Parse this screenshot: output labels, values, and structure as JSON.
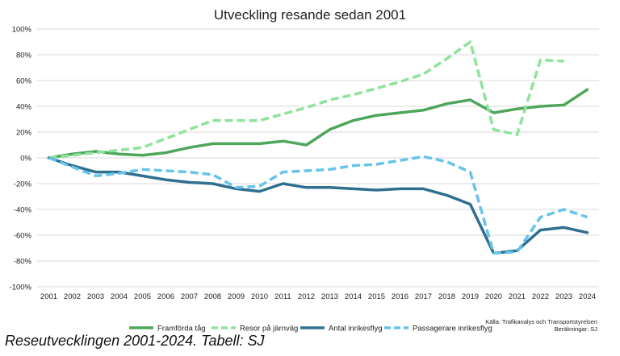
{
  "chart_data": {
    "type": "line",
    "title": "Utveckling resande sedan 2001",
    "xlabel": "",
    "ylabel": "",
    "ylim": [
      -100,
      100
    ],
    "y_ticks": [
      "100%",
      "80%",
      "60%",
      "40%",
      "20%",
      "0%",
      "-20%",
      "-40%",
      "-60%",
      "-80%",
      "-100%"
    ],
    "y_tick_values": [
      100,
      80,
      60,
      40,
      20,
      0,
      -20,
      -40,
      -60,
      -80,
      -100
    ],
    "x": [
      "2001",
      "2002",
      "2003",
      "2004",
      "2005",
      "2006",
      "2007",
      "2008",
      "2009",
      "2010",
      "2011",
      "2012",
      "2013",
      "2014",
      "2015",
      "2016",
      "2017",
      "2018",
      "2019",
      "2020",
      "2021",
      "2022",
      "2023",
      "2024"
    ],
    "grid": true,
    "legend_position": "bottom",
    "series": [
      {
        "name": "Framförda tåg",
        "color": "#4ea65b",
        "dashed": false,
        "values": [
          0,
          3,
          5,
          3,
          2,
          4,
          8,
          11,
          11,
          11,
          13,
          10,
          22,
          29,
          33,
          35,
          37,
          42,
          45,
          35,
          38,
          40,
          41,
          53
        ]
      },
      {
        "name": "Resor på järnväg",
        "color": "#8ee39a",
        "dashed": true,
        "values": [
          0,
          2,
          4,
          6,
          8,
          15,
          22,
          29,
          29,
          29,
          34,
          39,
          45,
          49,
          54,
          59,
          65,
          77,
          90,
          22,
          18,
          76,
          75,
          null
        ]
      },
      {
        "name": "Antal inrikesflyg",
        "color": "#2f7090",
        "dashed": false,
        "values": [
          0,
          -6,
          -11,
          -11,
          -14,
          -17,
          -19,
          -20,
          -24,
          -26,
          -20,
          -23,
          -23,
          -24,
          -25,
          -24,
          -24,
          -29,
          -36,
          -74,
          -72,
          -56,
          -54,
          -58
        ]
      },
      {
        "name": "Passagerare inrikesflyg",
        "color": "#66c3ea",
        "dashed": true,
        "values": [
          0,
          -7,
          -14,
          -12,
          -9,
          -10,
          -11,
          -13,
          -23,
          -22,
          -11,
          -10,
          -9,
          -6,
          -5,
          -2,
          1,
          -3,
          -11,
          -74,
          -73,
          -46,
          -40,
          -46
        ]
      }
    ],
    "source_lines": [
      "Källa: Trafikanalys och Transportstyrelsen",
      "Beräkningar: SJ"
    ]
  },
  "caption": "Reseutvecklingen 2001-2024. Tabell: SJ"
}
